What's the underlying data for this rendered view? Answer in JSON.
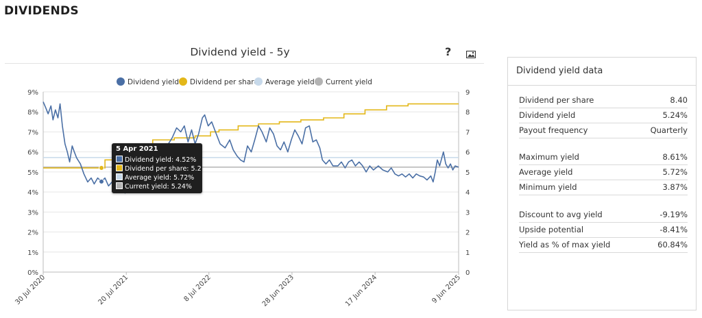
{
  "section": {
    "title": "DIVIDENDS"
  },
  "chart_header": {
    "title": "Dividend yield - 5y",
    "help": "?",
    "image_icon": "image-icon"
  },
  "colors": {
    "yield": "#4a6fa5",
    "dps": "#e3b719",
    "average": "#c7d9ea",
    "current": "#b3b3b3"
  },
  "chart_data": {
    "type": "line",
    "title": "Dividend yield - 5y",
    "xlabel": "",
    "ylabel": "",
    "x_range": [
      "2020-07-30",
      "2025-06-09"
    ],
    "x_tick_labels": [
      "30 Jul 2020",
      "20 Jul 2021",
      "8 Jul 2022",
      "28 Jun 2023",
      "17 Jun 2024",
      "9 Jun 2025"
    ],
    "x_tick_dates": [
      "2020-07-30",
      "2021-07-20",
      "2022-07-08",
      "2023-06-28",
      "2024-06-17",
      "2025-06-09"
    ],
    "y_left": {
      "min": 0,
      "max": 9,
      "unit": "%",
      "ticks": [
        "0%",
        "1%",
        "2%",
        "3%",
        "4%",
        "5%",
        "6%",
        "7%",
        "8%",
        "9%"
      ]
    },
    "y_right": {
      "min": 0,
      "max": 9,
      "ticks": [
        "0",
        "1",
        "2",
        "3",
        "4",
        "5",
        "6",
        "7",
        "8",
        "9"
      ]
    },
    "legend": [
      "Dividend yield",
      "Dividend per share",
      "Average yield",
      "Current yield"
    ],
    "legend_position": "top",
    "grid": true,
    "series": [
      {
        "name": "Dividend yield",
        "axis": "left",
        "points": [
          [
            "2020-07-30",
            8.5
          ],
          [
            "2020-08-10",
            8.2
          ],
          [
            "2020-08-20",
            7.9
          ],
          [
            "2020-09-01",
            8.3
          ],
          [
            "2020-09-10",
            7.6
          ],
          [
            "2020-09-20",
            8.1
          ],
          [
            "2020-10-01",
            7.7
          ],
          [
            "2020-10-10",
            8.4
          ],
          [
            "2020-10-20",
            7.3
          ],
          [
            "2020-10-31",
            6.4
          ],
          [
            "2020-11-10",
            6.0
          ],
          [
            "2020-11-20",
            5.5
          ],
          [
            "2020-12-01",
            6.3
          ],
          [
            "2020-12-10",
            6.0
          ],
          [
            "2020-12-20",
            5.7
          ],
          [
            "2021-01-05",
            5.4
          ],
          [
            "2021-01-20",
            4.9
          ],
          [
            "2021-02-05",
            4.5
          ],
          [
            "2021-02-20",
            4.7
          ],
          [
            "2021-03-05",
            4.4
          ],
          [
            "2021-03-20",
            4.7
          ],
          [
            "2021-04-05",
            4.52
          ],
          [
            "2021-04-20",
            4.7
          ],
          [
            "2021-05-05",
            4.3
          ],
          [
            "2021-05-20",
            4.5
          ],
          [
            "2021-06-05",
            4.2
          ],
          [
            "2021-06-20",
            4.3
          ],
          [
            "2021-07-01",
            4.1
          ],
          [
            "2021-07-15",
            3.95
          ],
          [
            "2021-07-30",
            4.4
          ],
          [
            "2021-08-20",
            4.6
          ],
          [
            "2021-09-15",
            4.8
          ],
          [
            "2021-10-10",
            5.0
          ],
          [
            "2021-11-05",
            5.3
          ],
          [
            "2021-12-01",
            5.5
          ],
          [
            "2022-01-05",
            6.2
          ],
          [
            "2022-02-01",
            6.7
          ],
          [
            "2022-02-20",
            7.2
          ],
          [
            "2022-03-10",
            7.0
          ],
          [
            "2022-03-25",
            7.3
          ],
          [
            "2022-04-10",
            6.5
          ],
          [
            "2022-04-25",
            7.1
          ],
          [
            "2022-05-10",
            6.4
          ],
          [
            "2022-05-25",
            6.9
          ],
          [
            "2022-06-10",
            7.7
          ],
          [
            "2022-06-20",
            7.85
          ],
          [
            "2022-07-05",
            7.3
          ],
          [
            "2022-07-20",
            7.5
          ],
          [
            "2022-08-05",
            7.0
          ],
          [
            "2022-08-25",
            6.4
          ],
          [
            "2022-09-15",
            6.2
          ],
          [
            "2022-10-05",
            6.6
          ],
          [
            "2022-10-20",
            6.1
          ],
          [
            "2022-11-05",
            5.8
          ],
          [
            "2022-11-20",
            5.6
          ],
          [
            "2022-12-05",
            5.5
          ],
          [
            "2022-12-20",
            6.3
          ],
          [
            "2023-01-05",
            6.0
          ],
          [
            "2023-01-20",
            6.6
          ],
          [
            "2023-02-05",
            7.3
          ],
          [
            "2023-02-20",
            7.0
          ],
          [
            "2023-03-10",
            6.5
          ],
          [
            "2023-03-25",
            7.2
          ],
          [
            "2023-04-10",
            6.9
          ],
          [
            "2023-04-25",
            6.3
          ],
          [
            "2023-05-10",
            6.1
          ],
          [
            "2023-05-25",
            6.5
          ],
          [
            "2023-06-10",
            6.0
          ],
          [
            "2023-06-25",
            6.6
          ],
          [
            "2023-07-10",
            7.1
          ],
          [
            "2023-07-25",
            6.8
          ],
          [
            "2023-08-10",
            6.4
          ],
          [
            "2023-08-25",
            7.2
          ],
          [
            "2023-09-10",
            7.3
          ],
          [
            "2023-09-25",
            6.5
          ],
          [
            "2023-10-10",
            6.6
          ],
          [
            "2023-10-25",
            6.2
          ],
          [
            "2023-11-05",
            5.6
          ],
          [
            "2023-11-20",
            5.4
          ],
          [
            "2023-12-05",
            5.6
          ],
          [
            "2023-12-20",
            5.3
          ],
          [
            "2024-01-10",
            5.3
          ],
          [
            "2024-01-25",
            5.5
          ],
          [
            "2024-02-10",
            5.2
          ],
          [
            "2024-02-25",
            5.5
          ],
          [
            "2024-03-10",
            5.6
          ],
          [
            "2024-03-25",
            5.3
          ],
          [
            "2024-04-10",
            5.5
          ],
          [
            "2024-04-25",
            5.3
          ],
          [
            "2024-05-10",
            5.0
          ],
          [
            "2024-05-25",
            5.3
          ],
          [
            "2024-06-10",
            5.1
          ],
          [
            "2024-07-01",
            5.3
          ],
          [
            "2024-07-20",
            5.1
          ],
          [
            "2024-08-10",
            5.0
          ],
          [
            "2024-08-25",
            5.2
          ],
          [
            "2024-09-10",
            4.9
          ],
          [
            "2024-09-25",
            4.8
          ],
          [
            "2024-10-10",
            4.9
          ],
          [
            "2024-10-25",
            4.75
          ],
          [
            "2024-11-10",
            4.9
          ],
          [
            "2024-11-25",
            4.7
          ],
          [
            "2024-12-10",
            4.9
          ],
          [
            "2024-12-25",
            4.8
          ],
          [
            "2025-01-10",
            4.75
          ],
          [
            "2025-01-25",
            4.6
          ],
          [
            "2025-02-10",
            4.8
          ],
          [
            "2025-02-20",
            4.5
          ],
          [
            "2025-03-01",
            5.0
          ],
          [
            "2025-03-10",
            5.6
          ],
          [
            "2025-03-20",
            5.3
          ],
          [
            "2025-04-05",
            6.0
          ],
          [
            "2025-04-15",
            5.4
          ],
          [
            "2025-04-25",
            5.2
          ],
          [
            "2025-05-05",
            5.4
          ],
          [
            "2025-05-15",
            5.1
          ],
          [
            "2025-05-25",
            5.3
          ],
          [
            "2025-06-09",
            5.24
          ]
        ]
      },
      {
        "name": "Dividend per share",
        "axis": "right",
        "step": true,
        "points": [
          [
            "2020-07-30",
            5.2
          ],
          [
            "2021-04-20",
            5.6
          ],
          [
            "2021-08-10",
            6.0
          ],
          [
            "2021-11-10",
            6.6
          ],
          [
            "2022-02-10",
            6.7
          ],
          [
            "2022-05-10",
            6.8
          ],
          [
            "2022-07-15",
            7.0
          ],
          [
            "2022-08-20",
            7.1
          ],
          [
            "2022-11-10",
            7.3
          ],
          [
            "2023-02-05",
            7.4
          ],
          [
            "2023-05-05",
            7.5
          ],
          [
            "2023-08-05",
            7.6
          ],
          [
            "2023-11-10",
            7.7
          ],
          [
            "2024-02-05",
            7.9
          ],
          [
            "2024-05-05",
            8.1
          ],
          [
            "2024-08-05",
            8.3
          ],
          [
            "2024-11-05",
            8.4
          ],
          [
            "2025-06-09",
            8.4
          ]
        ]
      },
      {
        "name": "Average yield",
        "axis": "left",
        "value": 5.72
      },
      {
        "name": "Current yield",
        "axis": "left",
        "value": 5.24
      }
    ]
  },
  "tooltip": {
    "date": "5 Apr 2021",
    "rows": [
      {
        "text": "Dividend yield: 4.52%",
        "color": "#4a6fa5"
      },
      {
        "text": "Dividend per share: 5.2",
        "color": "#e3b719"
      },
      {
        "text": "Average yield: 5.72%",
        "color": "#c7d9ea"
      },
      {
        "text": "Current yield: 5.24%",
        "color": "#b3b3b3"
      }
    ]
  },
  "panel": {
    "title": "Dividend yield data",
    "rows": [
      {
        "label": "Dividend per share",
        "value": "8.40"
      },
      {
        "label": "Dividend yield",
        "value": "5.24%"
      },
      {
        "label": "Payout frequency",
        "value": "Quarterly"
      },
      {
        "label": "Maximum yield",
        "value": "8.61%"
      },
      {
        "label": "Average yield",
        "value": "5.72%"
      },
      {
        "label": "Minimum yield",
        "value": "3.87%"
      },
      {
        "label": "Discount to avg yield",
        "value": "-9.19%"
      },
      {
        "label": "Upside potential",
        "value": "-8.41%"
      },
      {
        "label": "Yield as % of max yield",
        "value": "60.84%"
      }
    ]
  }
}
